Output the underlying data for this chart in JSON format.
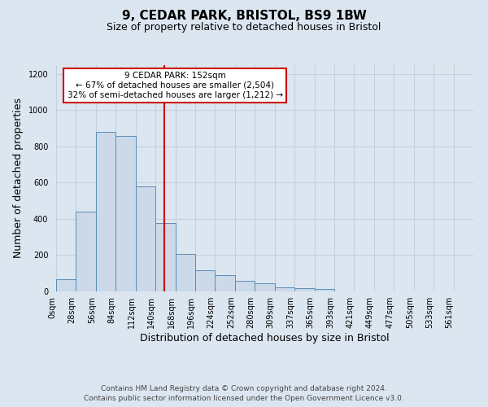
{
  "title1": "9, CEDAR PARK, BRISTOL, BS9 1BW",
  "title2": "Size of property relative to detached houses in Bristol",
  "xlabel": "Distribution of detached houses by size in Bristol",
  "ylabel": "Number of detached properties",
  "bar_labels": [
    "0sqm",
    "28sqm",
    "56sqm",
    "84sqm",
    "112sqm",
    "140sqm",
    "168sqm",
    "196sqm",
    "224sqm",
    "252sqm",
    "280sqm",
    "309sqm",
    "337sqm",
    "365sqm",
    "393sqm",
    "421sqm",
    "449sqm",
    "477sqm",
    "505sqm",
    "533sqm",
    "561sqm"
  ],
  "bar_values": [
    65,
    440,
    880,
    860,
    580,
    375,
    205,
    115,
    88,
    55,
    42,
    20,
    16,
    10,
    0,
    0,
    0,
    0,
    0,
    0,
    0
  ],
  "bar_color": "#ccd9e8",
  "bar_edge_color": "#5b8db8",
  "vline_color": "#cc0000",
  "annotation_text": "9 CEDAR PARK: 152sqm\n← 67% of detached houses are smaller (2,504)\n32% of semi-detached houses are larger (1,212) →",
  "annotation_box_facecolor": "#ffffff",
  "annotation_box_edgecolor": "#cc0000",
  "ylim": [
    0,
    1250
  ],
  "yticks": [
    0,
    200,
    400,
    600,
    800,
    1000,
    1200
  ],
  "grid_color": "#c5d0dc",
  "bg_color": "#dce6f0",
  "footer1": "Contains HM Land Registry data © Crown copyright and database right 2024.",
  "footer2": "Contains public sector information licensed under the Open Government Licence v3.0.",
  "title1_fontsize": 11,
  "title2_fontsize": 9,
  "xlabel_fontsize": 9,
  "ylabel_fontsize": 9,
  "tick_fontsize": 7,
  "footer_fontsize": 6.5
}
